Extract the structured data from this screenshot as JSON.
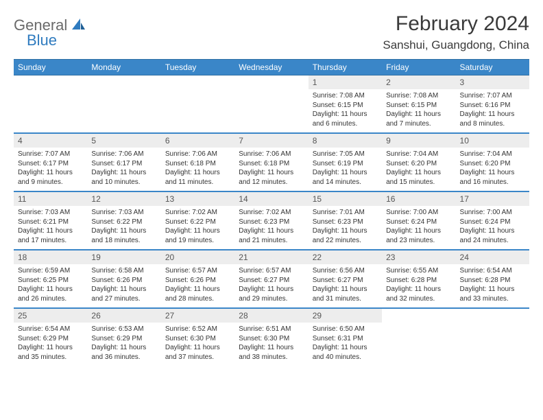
{
  "brand": {
    "general": "General",
    "blue": "Blue"
  },
  "title": "February 2024",
  "location": "Sanshui, Guangdong, China",
  "colors": {
    "header_bg": "#3a86c8",
    "header_text": "#ffffff",
    "week_border": "#3a86c8",
    "daynum_bg": "#ededed",
    "daynum_text": "#555555",
    "body_text": "#333333",
    "logo_gray": "#6a6a6a",
    "logo_blue": "#2f7bbf"
  },
  "dow": [
    "Sunday",
    "Monday",
    "Tuesday",
    "Wednesday",
    "Thursday",
    "Friday",
    "Saturday"
  ],
  "weeks": [
    [
      {
        "n": "",
        "sr": "",
        "ss": "",
        "dl": ""
      },
      {
        "n": "",
        "sr": "",
        "ss": "",
        "dl": ""
      },
      {
        "n": "",
        "sr": "",
        "ss": "",
        "dl": ""
      },
      {
        "n": "",
        "sr": "",
        "ss": "",
        "dl": ""
      },
      {
        "n": "1",
        "sr": "Sunrise: 7:08 AM",
        "ss": "Sunset: 6:15 PM",
        "dl": "Daylight: 11 hours and 6 minutes."
      },
      {
        "n": "2",
        "sr": "Sunrise: 7:08 AM",
        "ss": "Sunset: 6:15 PM",
        "dl": "Daylight: 11 hours and 7 minutes."
      },
      {
        "n": "3",
        "sr": "Sunrise: 7:07 AM",
        "ss": "Sunset: 6:16 PM",
        "dl": "Daylight: 11 hours and 8 minutes."
      }
    ],
    [
      {
        "n": "4",
        "sr": "Sunrise: 7:07 AM",
        "ss": "Sunset: 6:17 PM",
        "dl": "Daylight: 11 hours and 9 minutes."
      },
      {
        "n": "5",
        "sr": "Sunrise: 7:06 AM",
        "ss": "Sunset: 6:17 PM",
        "dl": "Daylight: 11 hours and 10 minutes."
      },
      {
        "n": "6",
        "sr": "Sunrise: 7:06 AM",
        "ss": "Sunset: 6:18 PM",
        "dl": "Daylight: 11 hours and 11 minutes."
      },
      {
        "n": "7",
        "sr": "Sunrise: 7:06 AM",
        "ss": "Sunset: 6:18 PM",
        "dl": "Daylight: 11 hours and 12 minutes."
      },
      {
        "n": "8",
        "sr": "Sunrise: 7:05 AM",
        "ss": "Sunset: 6:19 PM",
        "dl": "Daylight: 11 hours and 14 minutes."
      },
      {
        "n": "9",
        "sr": "Sunrise: 7:04 AM",
        "ss": "Sunset: 6:20 PM",
        "dl": "Daylight: 11 hours and 15 minutes."
      },
      {
        "n": "10",
        "sr": "Sunrise: 7:04 AM",
        "ss": "Sunset: 6:20 PM",
        "dl": "Daylight: 11 hours and 16 minutes."
      }
    ],
    [
      {
        "n": "11",
        "sr": "Sunrise: 7:03 AM",
        "ss": "Sunset: 6:21 PM",
        "dl": "Daylight: 11 hours and 17 minutes."
      },
      {
        "n": "12",
        "sr": "Sunrise: 7:03 AM",
        "ss": "Sunset: 6:22 PM",
        "dl": "Daylight: 11 hours and 18 minutes."
      },
      {
        "n": "13",
        "sr": "Sunrise: 7:02 AM",
        "ss": "Sunset: 6:22 PM",
        "dl": "Daylight: 11 hours and 19 minutes."
      },
      {
        "n": "14",
        "sr": "Sunrise: 7:02 AM",
        "ss": "Sunset: 6:23 PM",
        "dl": "Daylight: 11 hours and 21 minutes."
      },
      {
        "n": "15",
        "sr": "Sunrise: 7:01 AM",
        "ss": "Sunset: 6:23 PM",
        "dl": "Daylight: 11 hours and 22 minutes."
      },
      {
        "n": "16",
        "sr": "Sunrise: 7:00 AM",
        "ss": "Sunset: 6:24 PM",
        "dl": "Daylight: 11 hours and 23 minutes."
      },
      {
        "n": "17",
        "sr": "Sunrise: 7:00 AM",
        "ss": "Sunset: 6:24 PM",
        "dl": "Daylight: 11 hours and 24 minutes."
      }
    ],
    [
      {
        "n": "18",
        "sr": "Sunrise: 6:59 AM",
        "ss": "Sunset: 6:25 PM",
        "dl": "Daylight: 11 hours and 26 minutes."
      },
      {
        "n": "19",
        "sr": "Sunrise: 6:58 AM",
        "ss": "Sunset: 6:26 PM",
        "dl": "Daylight: 11 hours and 27 minutes."
      },
      {
        "n": "20",
        "sr": "Sunrise: 6:57 AM",
        "ss": "Sunset: 6:26 PM",
        "dl": "Daylight: 11 hours and 28 minutes."
      },
      {
        "n": "21",
        "sr": "Sunrise: 6:57 AM",
        "ss": "Sunset: 6:27 PM",
        "dl": "Daylight: 11 hours and 29 minutes."
      },
      {
        "n": "22",
        "sr": "Sunrise: 6:56 AM",
        "ss": "Sunset: 6:27 PM",
        "dl": "Daylight: 11 hours and 31 minutes."
      },
      {
        "n": "23",
        "sr": "Sunrise: 6:55 AM",
        "ss": "Sunset: 6:28 PM",
        "dl": "Daylight: 11 hours and 32 minutes."
      },
      {
        "n": "24",
        "sr": "Sunrise: 6:54 AM",
        "ss": "Sunset: 6:28 PM",
        "dl": "Daylight: 11 hours and 33 minutes."
      }
    ],
    [
      {
        "n": "25",
        "sr": "Sunrise: 6:54 AM",
        "ss": "Sunset: 6:29 PM",
        "dl": "Daylight: 11 hours and 35 minutes."
      },
      {
        "n": "26",
        "sr": "Sunrise: 6:53 AM",
        "ss": "Sunset: 6:29 PM",
        "dl": "Daylight: 11 hours and 36 minutes."
      },
      {
        "n": "27",
        "sr": "Sunrise: 6:52 AM",
        "ss": "Sunset: 6:30 PM",
        "dl": "Daylight: 11 hours and 37 minutes."
      },
      {
        "n": "28",
        "sr": "Sunrise: 6:51 AM",
        "ss": "Sunset: 6:30 PM",
        "dl": "Daylight: 11 hours and 38 minutes."
      },
      {
        "n": "29",
        "sr": "Sunrise: 6:50 AM",
        "ss": "Sunset: 6:31 PM",
        "dl": "Daylight: 11 hours and 40 minutes."
      },
      {
        "n": "",
        "sr": "",
        "ss": "",
        "dl": ""
      },
      {
        "n": "",
        "sr": "",
        "ss": "",
        "dl": ""
      }
    ]
  ]
}
